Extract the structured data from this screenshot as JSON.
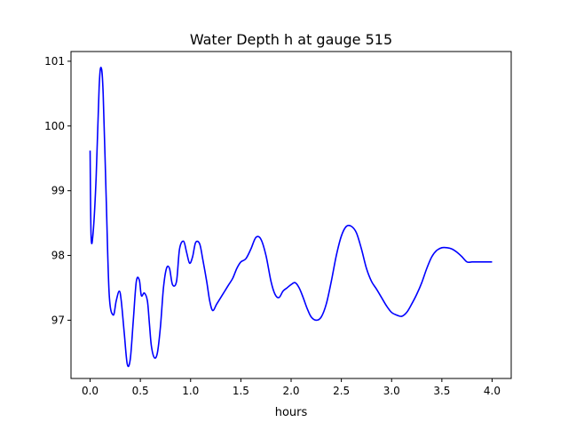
{
  "chart_data": {
    "type": "line",
    "title": "Water Depth h at gauge 515",
    "xlabel": "hours",
    "ylabel": "",
    "xlim": [
      -0.19,
      4.19
    ],
    "ylim": [
      96.1,
      101.15
    ],
    "xticks": [
      0.0,
      0.5,
      1.0,
      1.5,
      2.0,
      2.5,
      3.0,
      3.5,
      4.0
    ],
    "xtick_labels": [
      "0.0",
      "0.5",
      "1.0",
      "1.5",
      "2.0",
      "2.5",
      "3.0",
      "3.5",
      "4.0"
    ],
    "yticks": [
      97,
      98,
      99,
      100,
      101
    ],
    "ytick_labels": [
      "97",
      "98",
      "99",
      "100",
      "101"
    ],
    "grid": false,
    "legend": "none",
    "series": [
      {
        "color": "#0000ff",
        "x": [
          0.0,
          0.01,
          0.03,
          0.06,
          0.09,
          0.11,
          0.13,
          0.16,
          0.19,
          0.23,
          0.26,
          0.29,
          0.31,
          0.34,
          0.37,
          0.4,
          0.43,
          0.46,
          0.49,
          0.51,
          0.54,
          0.57,
          0.59,
          0.61,
          0.64,
          0.67,
          0.7,
          0.73,
          0.76,
          0.79,
          0.82,
          0.86,
          0.89,
          0.93,
          0.96,
          0.99,
          1.02,
          1.05,
          1.09,
          1.12,
          1.16,
          1.19,
          1.22,
          1.26,
          1.3,
          1.34,
          1.38,
          1.42,
          1.46,
          1.5,
          1.55,
          1.6,
          1.65,
          1.7,
          1.75,
          1.8,
          1.84,
          1.88,
          1.92,
          1.96,
          2.0,
          2.04,
          2.08,
          2.12,
          2.16,
          2.2,
          2.25,
          2.3,
          2.35,
          2.4,
          2.45,
          2.5,
          2.55,
          2.6,
          2.65,
          2.7,
          2.75,
          2.8,
          2.85,
          2.9,
          2.95,
          3.0,
          3.05,
          3.1,
          3.15,
          3.2,
          3.25,
          3.3,
          3.35,
          3.4,
          3.45,
          3.5,
          3.55,
          3.6,
          3.65,
          3.7,
          3.75,
          3.8,
          3.85,
          3.9,
          3.95,
          4.0
        ],
        "y": [
          99.62,
          98.3,
          98.35,
          99.2,
          100.6,
          100.9,
          100.5,
          98.9,
          97.4,
          97.08,
          97.3,
          97.45,
          97.3,
          96.8,
          96.32,
          96.4,
          97.0,
          97.6,
          97.62,
          97.38,
          97.42,
          97.3,
          96.95,
          96.6,
          96.42,
          96.5,
          96.9,
          97.5,
          97.8,
          97.8,
          97.55,
          97.6,
          98.1,
          98.22,
          98.05,
          97.88,
          97.98,
          98.2,
          98.18,
          97.95,
          97.6,
          97.3,
          97.15,
          97.25,
          97.35,
          97.45,
          97.55,
          97.65,
          97.8,
          97.9,
          97.95,
          98.1,
          98.28,
          98.25,
          98.0,
          97.6,
          97.4,
          97.35,
          97.45,
          97.5,
          97.55,
          97.58,
          97.5,
          97.35,
          97.18,
          97.05,
          97.0,
          97.05,
          97.25,
          97.6,
          98.0,
          98.3,
          98.45,
          98.45,
          98.35,
          98.1,
          97.8,
          97.6,
          97.48,
          97.35,
          97.22,
          97.12,
          97.08,
          97.06,
          97.12,
          97.25,
          97.4,
          97.58,
          97.8,
          97.98,
          98.08,
          98.12,
          98.12,
          98.1,
          98.05,
          97.98,
          97.9,
          97.9,
          97.9,
          97.9,
          97.9,
          97.9
        ]
      }
    ]
  }
}
